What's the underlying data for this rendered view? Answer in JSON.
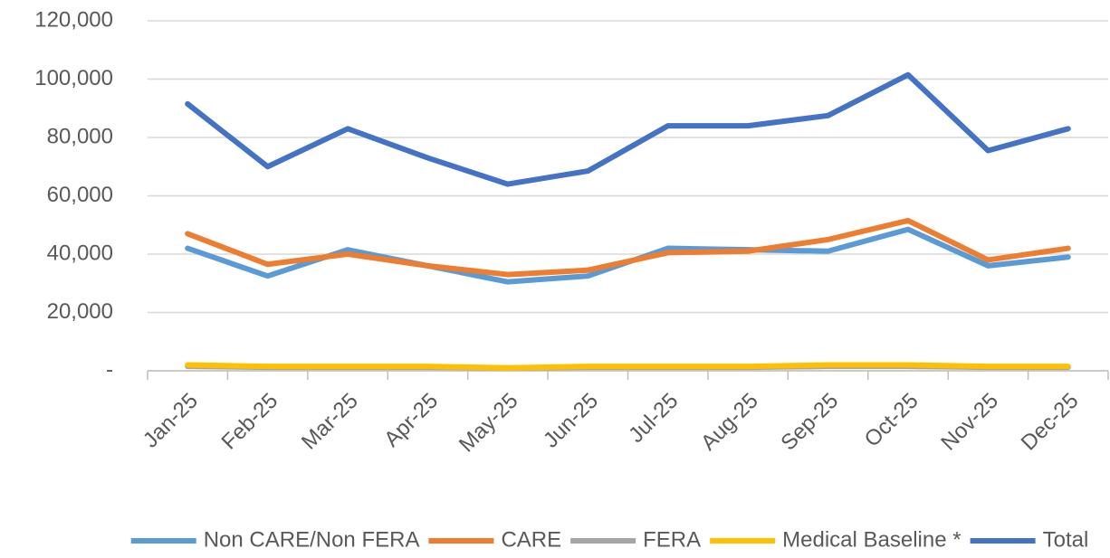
{
  "chart_data": {
    "type": "line",
    "categories": [
      "Jan-25",
      "Feb-25",
      "Mar-25",
      "Apr-25",
      "May-25",
      "Jun-25",
      "Jul-25",
      "Aug-25",
      "Sep-25",
      "Oct-25",
      "Nov-25",
      "Dec-25"
    ],
    "series": [
      {
        "name": "Non CARE/Non FERA",
        "color": "#5b9bd5",
        "values": [
          42000,
          32500,
          41500,
          36000,
          30500,
          32500,
          42000,
          41500,
          41000,
          48500,
          36000,
          39000
        ]
      },
      {
        "name": "CARE",
        "color": "#ed7d31",
        "values": [
          47000,
          36500,
          40000,
          36000,
          33000,
          34500,
          40500,
          41000,
          45000,
          51500,
          38000,
          42000
        ]
      },
      {
        "name": "FERA",
        "color": "#a5a5a5",
        "values": [
          1500,
          1200,
          1200,
          1200,
          1000,
          1200,
          1200,
          1200,
          1500,
          1500,
          1200,
          1200
        ]
      },
      {
        "name": "Medical Baseline *",
        "color": "#ffc000",
        "values": [
          2000,
          1500,
          1500,
          1500,
          1000,
          1500,
          1500,
          1500,
          2000,
          2000,
          1500,
          1500
        ]
      },
      {
        "name": "Total",
        "color": "#4472c4",
        "values": [
          91500,
          70000,
          83000,
          73000,
          64000,
          68500,
          84000,
          84000,
          87500,
          101500,
          75500,
          83000
        ]
      }
    ],
    "ylim": [
      0,
      120000
    ],
    "yticks": [
      {
        "value": 0,
        "label": "-"
      },
      {
        "value": 20000,
        "label": "20,000"
      },
      {
        "value": 40000,
        "label": "40,000"
      },
      {
        "value": 60000,
        "label": "60,000"
      },
      {
        "value": 80000,
        "label": "80,000"
      },
      {
        "value": 100000,
        "label": "100,000"
      },
      {
        "value": 120000,
        "label": "120,000"
      }
    ],
    "grid": true,
    "legend": "bottom"
  }
}
